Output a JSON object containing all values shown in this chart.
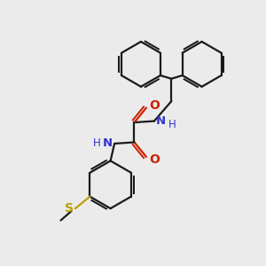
{
  "background_color": "#ebebeb",
  "bond_color": "#1a1a1a",
  "N_color": "#3333cc",
  "O_color": "#cc2200",
  "S_color": "#b8a000",
  "line_width": 1.6,
  "figsize": [
    3.0,
    3.0
  ],
  "dpi": 100,
  "xlim": [
    0,
    10
  ],
  "ylim": [
    0,
    10
  ]
}
